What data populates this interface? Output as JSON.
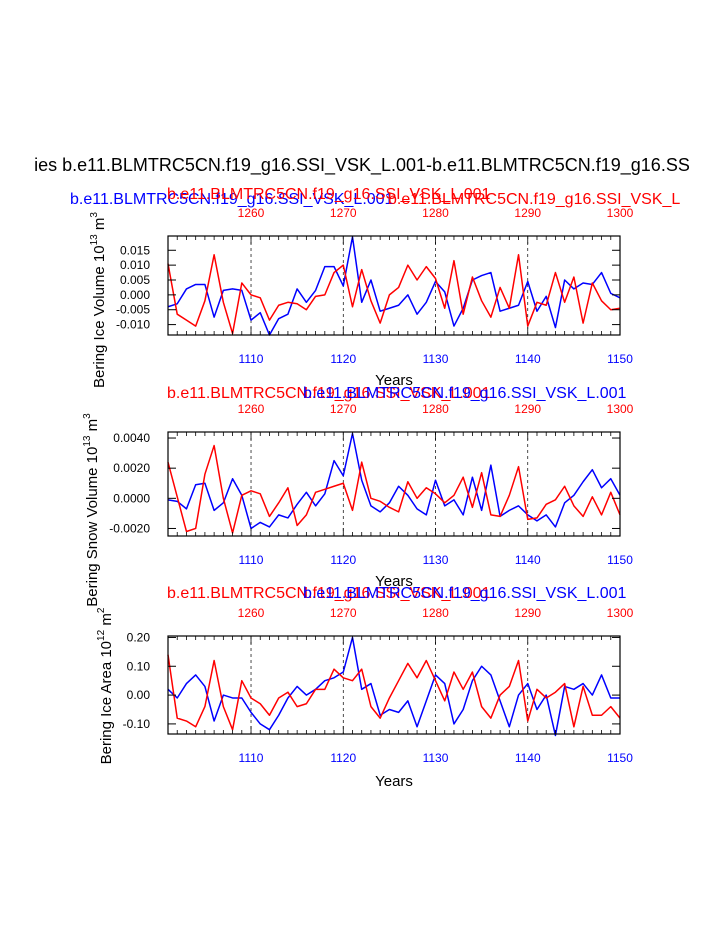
{
  "page_title": "ies b.e11.BLMTRC5CN.f19_g16.SSI_VSK_L.001-b.e11.BLMTRC5CN.f19_g16.SS",
  "header": {
    "blue_title": "b.e11.BLMTRC5CN.f19_g16.SSI_VSK_L.001",
    "red_title_overlap": "b.e11.BLMTRC5CN.f19_g16.SSI_VSK_L.001",
    "red_title_tail": "b.e11.BLMTRC5CN.f19_g16.SSI_VSK_L"
  },
  "colors": {
    "blue": "#0000ff",
    "red": "#ff0000",
    "black": "#000000"
  },
  "chart_data": [
    {
      "type": "line",
      "title_red": "b.e11.BLMTRC5CN.f19_g16.SSI_VSK_L.001",
      "title_blue": "b.e11.BLMTRC5CN.f19_g16.SSI_VSK_L.001",
      "ylabel": "Bering Ice Volume 10",
      "ylabel_exp": "13",
      "ylabel_unit": " m",
      "ylabel_unit_exp": "3",
      "xlabel": "Years",
      "ylim": [
        -0.0135,
        0.0198
      ],
      "yticks": [
        -0.01,
        -0.005,
        0.0,
        0.005,
        0.01,
        0.015
      ],
      "ytick_labels": [
        "-0.010",
        "-0.005",
        "0.000",
        "0.005",
        "0.010",
        "0.015"
      ],
      "x_bottom_range": [
        1101,
        1150
      ],
      "x_bottom_ticks": [
        1110,
        1120,
        1130,
        1140,
        1150
      ],
      "x_top_range": [
        1251,
        1300
      ],
      "x_top_ticks": [
        1260,
        1270,
        1280,
        1290,
        1300
      ],
      "series": [
        {
          "name": "b.e11.BLMTRC5CN.f19_g16.SSI_VSK_L.001",
          "color": "blue",
          "x_start": 1101,
          "values": [
            -0.004,
            -0.003,
            0.002,
            0.0035,
            0.0035,
            -0.0075,
            0.0015,
            0.002,
            0.0015,
            -0.0085,
            -0.006,
            -0.0135,
            -0.008,
            -0.0065,
            0.002,
            -0.0025,
            0.0015,
            0.0095,
            0.0095,
            0.003,
            0.0195,
            -0.0025,
            0.005,
            -0.0055,
            -0.0045,
            -0.0035,
            0.0,
            -0.0065,
            -0.0025,
            0.0045,
            0.001,
            -0.0105,
            -0.0045,
            0.005,
            0.0065,
            0.0075,
            -0.0055,
            -0.0045,
            -0.0035,
            0.0045,
            -0.0055,
            -0.0005,
            -0.011,
            0.005,
            0.002,
            0.004,
            0.0035,
            0.0075,
            0.0005,
            -0.001
          ]
        },
        {
          "name": "b.e11.BLMTRC5CN.f19_g16.SSI_VSK_L.001",
          "color": "red",
          "x_start": 1251,
          "values": [
            0.0105,
            -0.0065,
            -0.0085,
            -0.0105,
            -0.002,
            0.0135,
            -0.0025,
            -0.013,
            0.004,
            0.0,
            -0.001,
            -0.0085,
            -0.0035,
            -0.0025,
            -0.003,
            -0.005,
            -0.0005,
            0.0,
            0.0075,
            0.01,
            -0.004,
            0.0085,
            -0.002,
            -0.0095,
            0.0,
            0.0025,
            0.01,
            0.005,
            0.0095,
            0.0055,
            -0.0045,
            0.0115,
            -0.0065,
            0.006,
            -0.002,
            -0.0075,
            0.0025,
            -0.0045,
            0.0135,
            -0.0105,
            -0.0025,
            -0.0035,
            0.0075,
            -0.0025,
            0.006,
            -0.0095,
            0.004,
            -0.002,
            -0.005,
            -0.0045
          ]
        }
      ]
    },
    {
      "type": "line",
      "title_red": "b.e11.BLMTRC5CN.f19_g16.SSI_VSK_L.001",
      "title_blue": "b.e11.BLMTRC5CN.f19_g16.SSI_VSK_L.001",
      "ylabel": "Bering Snow Volume 10",
      "ylabel_exp": "13",
      "ylabel_unit": " m",
      "ylabel_unit_exp": "3",
      "xlabel": "Years",
      "ylim": [
        -0.0025,
        0.0044
      ],
      "yticks": [
        -0.002,
        0.0,
        0.002,
        0.004
      ],
      "ytick_labels": [
        "-0.0020",
        "0.0000",
        "0.0020",
        "0.0040"
      ],
      "x_bottom_range": [
        1101,
        1150
      ],
      "x_bottom_ticks": [
        1110,
        1120,
        1130,
        1140,
        1150
      ],
      "x_top_range": [
        1251,
        1300
      ],
      "x_top_ticks": [
        1260,
        1270,
        1280,
        1290,
        1300
      ],
      "series": [
        {
          "name": "b.e11.BLMTRC5CN.f19_g16.SSI_VSK_L.001",
          "color": "blue",
          "x_start": 1101,
          "values": [
            -0.0001,
            -0.0002,
            -0.0007,
            0.0009,
            0.001,
            -0.0008,
            -0.0003,
            0.0013,
            0.0002,
            -0.002,
            -0.0016,
            -0.0019,
            -0.0011,
            -0.0013,
            -0.0004,
            0.0004,
            -0.0005,
            0.0003,
            0.0025,
            0.0015,
            0.0043,
            0.0012,
            -0.0005,
            -0.0009,
            -0.0003,
            0.0008,
            0.0002,
            -0.0007,
            -0.0011,
            0.0012,
            -0.0005,
            -0.0001,
            -0.0011,
            0.0014,
            -0.0008,
            0.0022,
            -0.0012,
            -0.0008,
            -0.0005,
            -0.0011,
            -0.0015,
            -0.0011,
            -0.0019,
            -0.0003,
            0.0002,
            0.0011,
            0.0019,
            0.0007,
            0.0013,
            0.0002
          ]
        },
        {
          "name": "b.e11.BLMTRC5CN.f19_g16.SSI_VSK_L.001",
          "color": "red",
          "x_start": 1251,
          "values": [
            0.0024,
            0.0001,
            -0.0022,
            -0.002,
            0.0016,
            0.0035,
            0.0,
            -0.0023,
            0.0002,
            0.0005,
            0.0003,
            -0.0012,
            -0.0003,
            0.0007,
            -0.0018,
            -0.0011,
            0.0004,
            0.0006,
            0.0008,
            0.001,
            -0.0008,
            0.0024,
            0.0,
            -0.0002,
            -0.0006,
            -0.0009,
            0.0011,
            0.0,
            0.0007,
            0.0003,
            -0.0003,
            0.0002,
            0.0014,
            -0.0006,
            0.0017,
            -0.0011,
            -0.0012,
            0.0002,
            0.0021,
            -0.0014,
            -0.0013,
            -0.0004,
            -0.0001,
            0.0008,
            -0.0005,
            -0.0012,
            0.0001,
            -0.0011,
            0.0004,
            -0.0011
          ]
        }
      ]
    },
    {
      "type": "line",
      "title_red": "b.e11.BLMTRC5CN.f19_g16.SSI_VSK_L.001",
      "title_blue": "b.e11.BLMTRC5CN.f19_g16.SSI_VSK_L.001",
      "ylabel": "Bering Ice Area 10",
      "ylabel_exp": "12",
      "ylabel_unit": " m",
      "ylabel_unit_exp": "2",
      "xlabel": "Years",
      "ylim": [
        -0.135,
        0.205
      ],
      "yticks": [
        -0.1,
        0.0,
        0.1,
        0.2
      ],
      "ytick_labels": [
        "-0.10",
        "0.00",
        "0.10",
        "0.20"
      ],
      "x_bottom_range": [
        1101,
        1150
      ],
      "x_bottom_ticks": [
        1110,
        1120,
        1130,
        1140,
        1150
      ],
      "x_top_range": [
        1251,
        1300
      ],
      "x_top_ticks": [
        1260,
        1270,
        1280,
        1290,
        1300
      ],
      "series": [
        {
          "name": "b.e11.BLMTRC5CN.f19_g16.SSI_VSK_L.001",
          "color": "blue",
          "x_start": 1101,
          "values": [
            0.02,
            -0.01,
            0.04,
            0.07,
            0.03,
            -0.09,
            0.0,
            -0.01,
            -0.01,
            -0.06,
            -0.1,
            -0.12,
            -0.07,
            -0.01,
            0.03,
            0.0,
            0.02,
            0.05,
            0.06,
            0.08,
            0.2,
            0.02,
            0.04,
            -0.07,
            -0.05,
            -0.06,
            -0.02,
            -0.11,
            -0.02,
            0.07,
            0.04,
            -0.1,
            -0.05,
            0.05,
            0.1,
            0.07,
            -0.02,
            -0.11,
            0.0,
            0.04,
            -0.05,
            0.0,
            -0.14,
            0.03,
            0.02,
            0.04,
            0.0,
            0.07,
            -0.01,
            -0.01
          ]
        },
        {
          "name": "b.e11.BLMTRC5CN.f19_g16.SSI_VSK_L.001",
          "color": "red",
          "x_start": 1251,
          "values": [
            0.14,
            -0.08,
            -0.09,
            -0.11,
            -0.04,
            0.12,
            -0.04,
            -0.12,
            0.05,
            -0.01,
            -0.03,
            -0.07,
            -0.01,
            0.01,
            -0.04,
            -0.03,
            0.02,
            0.02,
            0.09,
            0.06,
            0.05,
            0.09,
            -0.04,
            -0.08,
            -0.01,
            0.05,
            0.11,
            0.06,
            0.12,
            0.05,
            -0.02,
            0.08,
            0.02,
            0.08,
            -0.04,
            -0.08,
            0.0,
            0.03,
            0.12,
            -0.09,
            0.02,
            -0.01,
            0.01,
            0.04,
            -0.11,
            0.03,
            -0.07,
            -0.07,
            -0.04,
            -0.08
          ]
        }
      ]
    }
  ]
}
